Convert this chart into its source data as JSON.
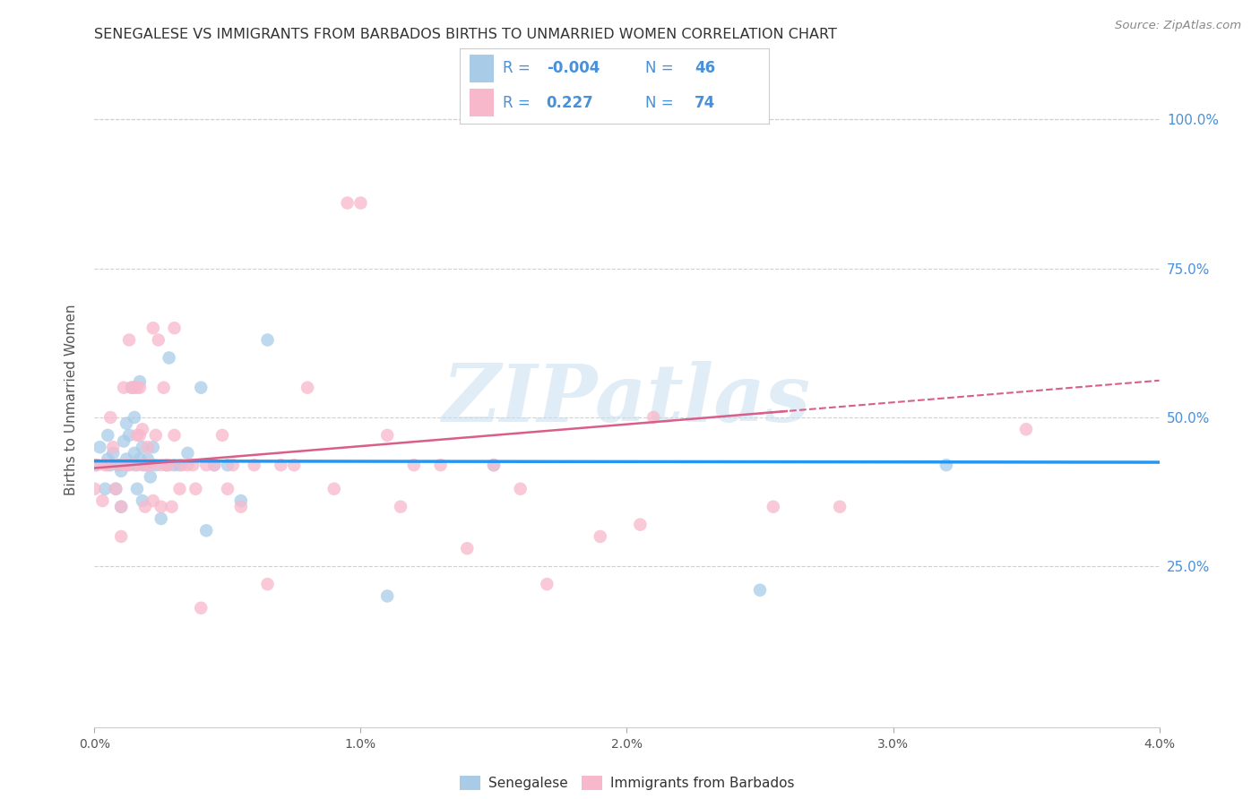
{
  "title": "SENEGALESE VS IMMIGRANTS FROM BARBADOS BIRTHS TO UNMARRIED WOMEN CORRELATION CHART",
  "source": "Source: ZipAtlas.com",
  "ylabel": "Births to Unmarried Women",
  "xlim": [
    0.0,
    4.0
  ],
  "ylim": [
    -0.02,
    1.08
  ],
  "blue_color": "#a8cce8",
  "pink_color": "#f8b8cc",
  "blue_line_color": "#2196F3",
  "pink_line_color": "#d95f8a",
  "legend_text_color": "#4a90d9",
  "right_axis_color": "#4a90d9",
  "grid_color": "#d0d0d0",
  "title_color": "#333333",
  "source_color": "#888888",
  "watermark_color": "#c8dff0",
  "R_blue": -0.004,
  "N_blue": 46,
  "R_pink": 0.227,
  "N_pink": 74,
  "watermark": "ZIPatlas",
  "blue_scatter_x": [
    0.0,
    0.02,
    0.04,
    0.05,
    0.05,
    0.06,
    0.07,
    0.08,
    0.09,
    0.1,
    0.1,
    0.11,
    0.12,
    0.12,
    0.13,
    0.13,
    0.14,
    0.15,
    0.15,
    0.16,
    0.16,
    0.17,
    0.17,
    0.18,
    0.18,
    0.19,
    0.2,
    0.21,
    0.22,
    0.23,
    0.25,
    0.27,
    0.28,
    0.3,
    0.32,
    0.35,
    0.4,
    0.45,
    0.5,
    0.55,
    0.65,
    1.1,
    1.5,
    2.5,
    3.2,
    0.42
  ],
  "blue_scatter_y": [
    0.42,
    0.45,
    0.38,
    0.43,
    0.47,
    0.42,
    0.44,
    0.38,
    0.42,
    0.41,
    0.35,
    0.46,
    0.43,
    0.49,
    0.42,
    0.47,
    0.55,
    0.44,
    0.5,
    0.42,
    0.38,
    0.43,
    0.56,
    0.36,
    0.45,
    0.42,
    0.43,
    0.4,
    0.45,
    0.42,
    0.33,
    0.42,
    0.6,
    0.42,
    0.42,
    0.44,
    0.55,
    0.42,
    0.42,
    0.36,
    0.63,
    0.2,
    0.42,
    0.21,
    0.42,
    0.31
  ],
  "pink_scatter_x": [
    0.0,
    0.01,
    0.03,
    0.04,
    0.05,
    0.06,
    0.07,
    0.08,
    0.09,
    0.1,
    0.1,
    0.11,
    0.12,
    0.12,
    0.13,
    0.14,
    0.15,
    0.15,
    0.16,
    0.16,
    0.17,
    0.17,
    0.18,
    0.18,
    0.19,
    0.2,
    0.2,
    0.21,
    0.22,
    0.22,
    0.23,
    0.24,
    0.25,
    0.25,
    0.26,
    0.27,
    0.28,
    0.29,
    0.3,
    0.3,
    0.32,
    0.33,
    0.35,
    0.37,
    0.38,
    0.4,
    0.42,
    0.45,
    0.48,
    0.5,
    0.52,
    0.55,
    0.6,
    0.65,
    0.7,
    0.75,
    0.8,
    0.9,
    0.95,
    1.0,
    1.1,
    1.15,
    1.2,
    1.3,
    1.4,
    1.5,
    1.6,
    1.7,
    1.9,
    2.05,
    2.1,
    2.55,
    2.8,
    3.5
  ],
  "pink_scatter_y": [
    0.38,
    0.42,
    0.36,
    0.42,
    0.42,
    0.5,
    0.45,
    0.38,
    0.42,
    0.3,
    0.35,
    0.55,
    0.42,
    0.42,
    0.63,
    0.55,
    0.55,
    0.42,
    0.55,
    0.47,
    0.47,
    0.55,
    0.42,
    0.48,
    0.35,
    0.42,
    0.45,
    0.42,
    0.36,
    0.65,
    0.47,
    0.63,
    0.42,
    0.35,
    0.55,
    0.42,
    0.42,
    0.35,
    0.47,
    0.65,
    0.38,
    0.42,
    0.42,
    0.42,
    0.38,
    0.18,
    0.42,
    0.42,
    0.47,
    0.38,
    0.42,
    0.35,
    0.42,
    0.22,
    0.42,
    0.42,
    0.55,
    0.38,
    0.86,
    0.86,
    0.47,
    0.35,
    0.42,
    0.42,
    0.28,
    0.42,
    0.38,
    0.22,
    0.3,
    0.32,
    0.5,
    0.35,
    0.35,
    0.48
  ]
}
